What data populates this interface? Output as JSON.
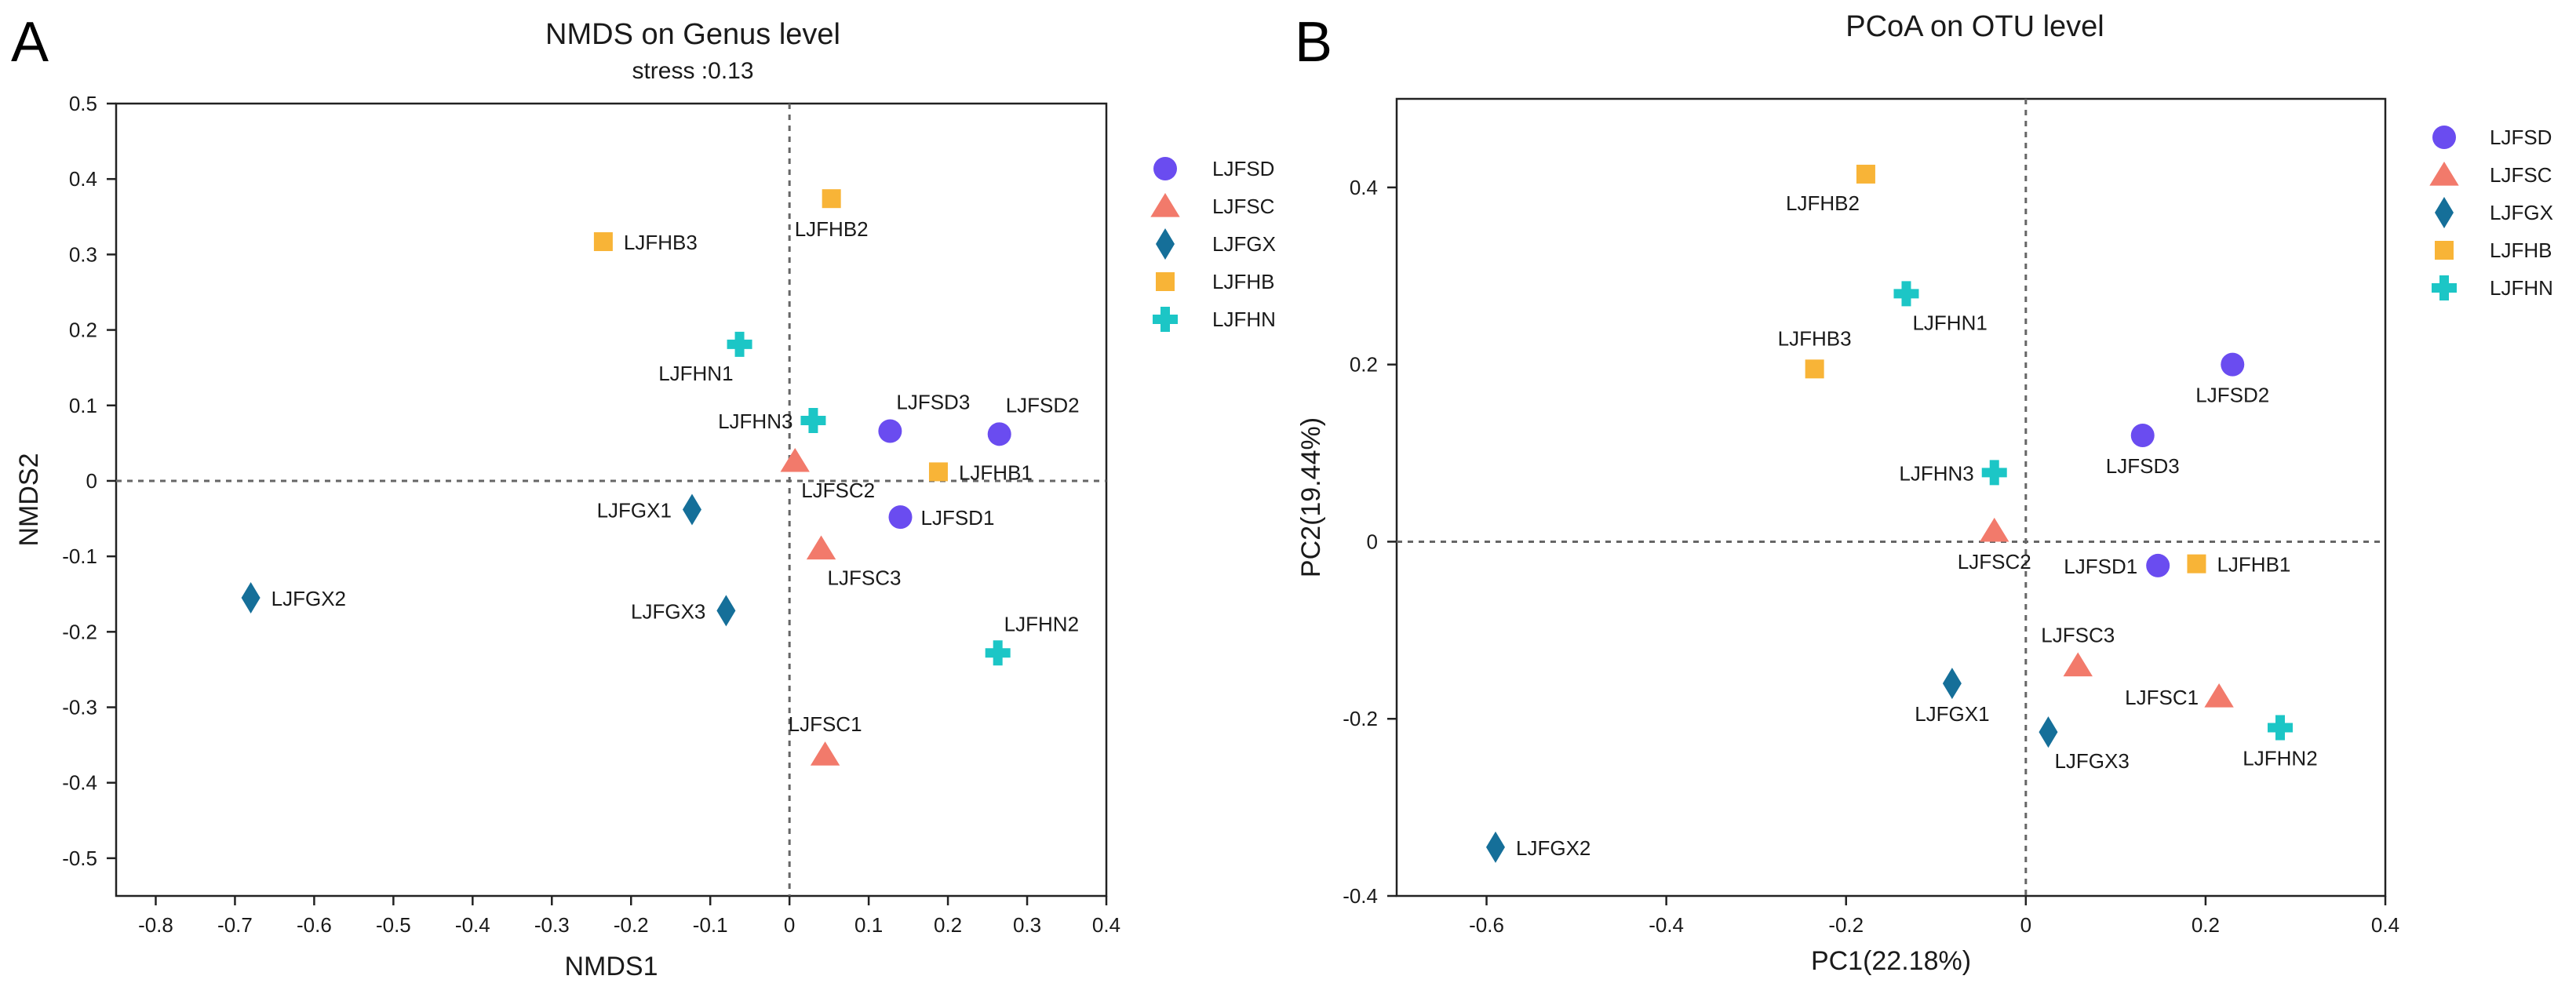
{
  "panels": [
    {
      "letter": "A",
      "title": "NMDS on Genus level",
      "subtitle": "stress :0.13"
    },
    {
      "letter": "B",
      "title": "PCoA on OTU level",
      "subtitle": ""
    }
  ],
  "groups": [
    {
      "name": "LJFSD",
      "marker": "circle",
      "color": "#6a4cf0"
    },
    {
      "name": "LJFSC",
      "marker": "triangle",
      "color": "#f27a6b"
    },
    {
      "name": "LJFGX",
      "marker": "diamond",
      "color": "#156f99"
    },
    {
      "name": "LJFHB",
      "marker": "square",
      "color": "#f8b437"
    },
    {
      "name": "LJFHN",
      "marker": "cross",
      "color": "#1cc6c6"
    }
  ],
  "chart_data": [
    {
      "type": "scatter",
      "title": "NMDS on Genus level",
      "subtitle": "stress :0.13",
      "xlabel": "NMDS1",
      "ylabel": "NMDS2",
      "xlim": [
        -0.85,
        0.4
      ],
      "ylim": [
        -0.55,
        0.5
      ],
      "xticks": [
        -0.8,
        -0.7,
        -0.6,
        -0.5,
        -0.4,
        -0.3,
        -0.2,
        -0.1,
        0,
        0.1,
        0.2,
        0.3,
        0.4
      ],
      "xtick_labels": [
        "-0.8",
        "-0.7",
        "-0.6",
        "-0.5",
        "-0.4",
        "-0.3",
        "-0.2",
        "-0.1",
        "0",
        "0.1",
        "0.2",
        "0.3",
        "0.4"
      ],
      "yticks": [
        -0.5,
        -0.4,
        -0.3,
        -0.2,
        -0.1,
        0,
        0.1,
        0.2,
        0.3,
        0.4,
        0.5
      ],
      "ytick_labels": [
        "-0.5",
        "-0.4",
        "-0.3",
        "-0.2",
        "-0.1",
        "0",
        "0.1",
        "0.2",
        "0.3",
        "0.4",
        "0.5"
      ],
      "reference_lines": {
        "x": 0,
        "y": 0
      },
      "legend_position": "right",
      "points": [
        {
          "label": "LJFSD1",
          "group": "LJFSD",
          "x": 0.14,
          "y": -0.048,
          "label_pos": "right"
        },
        {
          "label": "LJFSD2",
          "group": "LJFSD",
          "x": 0.265,
          "y": 0.062,
          "label_pos": "above-right"
        },
        {
          "label": "LJFSD3",
          "group": "LJFSD",
          "x": 0.127,
          "y": 0.066,
          "label_pos": "above-right"
        },
        {
          "label": "LJFSC1",
          "group": "LJFSC",
          "x": 0.045,
          "y": -0.363,
          "label_pos": "above"
        },
        {
          "label": "LJFSC2",
          "group": "LJFSC",
          "x": 0.007,
          "y": 0.026,
          "label_pos": "below-right"
        },
        {
          "label": "LJFSC3",
          "group": "LJFSC",
          "x": 0.04,
          "y": -0.09,
          "label_pos": "below-right"
        },
        {
          "label": "LJFGX1",
          "group": "LJFGX",
          "x": -0.123,
          "y": -0.038,
          "label_pos": "left"
        },
        {
          "label": "LJFGX2",
          "group": "LJFGX",
          "x": -0.68,
          "y": -0.155,
          "label_pos": "right"
        },
        {
          "label": "LJFGX3",
          "group": "LJFGX",
          "x": -0.08,
          "y": -0.172,
          "label_pos": "left"
        },
        {
          "label": "LJFHB1",
          "group": "LJFHB",
          "x": 0.188,
          "y": 0.012,
          "label_pos": "right"
        },
        {
          "label": "LJFHB2",
          "group": "LJFHB",
          "x": 0.053,
          "y": 0.374,
          "label_pos": "below"
        },
        {
          "label": "LJFHB3",
          "group": "LJFHB",
          "x": -0.235,
          "y": 0.317,
          "label_pos": "right"
        },
        {
          "label": "LJFHN1",
          "group": "LJFHN",
          "x": -0.063,
          "y": 0.181,
          "label_pos": "below-left"
        },
        {
          "label": "LJFHN2",
          "group": "LJFHN",
          "x": 0.263,
          "y": -0.228,
          "label_pos": "above-right"
        },
        {
          "label": "LJFHN3",
          "group": "LJFHN",
          "x": 0.03,
          "y": 0.08,
          "label_pos": "left"
        }
      ]
    },
    {
      "type": "scatter",
      "title": "PCoA on OTU level",
      "xlabel": "PC1(22.18%)",
      "ylabel": "PC2(19.44%)",
      "xlim": [
        -0.7,
        0.4
      ],
      "ylim": [
        -0.4,
        0.5
      ],
      "xticks": [
        -0.6,
        -0.4,
        -0.2,
        0,
        0.2,
        0.4
      ],
      "xtick_labels": [
        "-0.6",
        "-0.4",
        "-0.2",
        "0",
        "0.2",
        "0.4"
      ],
      "yticks": [
        -0.4,
        -0.2,
        0,
        0.2,
        0.4
      ],
      "ytick_labels": [
        "-0.4",
        "-0.2",
        "0",
        "0.2",
        "0.4"
      ],
      "reference_lines": {
        "x": 0,
        "y": 0
      },
      "legend_position": "right",
      "points": [
        {
          "label": "LJFSD1",
          "group": "LJFSD",
          "x": 0.147,
          "y": -0.027,
          "label_pos": "left"
        },
        {
          "label": "LJFSD2",
          "group": "LJFSD",
          "x": 0.23,
          "y": 0.2,
          "label_pos": "below"
        },
        {
          "label": "LJFSD3",
          "group": "LJFSD",
          "x": 0.13,
          "y": 0.12,
          "label_pos": "below"
        },
        {
          "label": "LJFSC1",
          "group": "LJFSC",
          "x": 0.215,
          "y": -0.175,
          "label_pos": "left"
        },
        {
          "label": "LJFSC2",
          "group": "LJFSC",
          "x": -0.035,
          "y": 0.012,
          "label_pos": "below"
        },
        {
          "label": "LJFSC3",
          "group": "LJFSC",
          "x": 0.058,
          "y": -0.14,
          "label_pos": "above"
        },
        {
          "label": "LJFGX1",
          "group": "LJFGX",
          "x": -0.082,
          "y": -0.16,
          "label_pos": "below"
        },
        {
          "label": "LJFGX2",
          "group": "LJFGX",
          "x": -0.59,
          "y": -0.345,
          "label_pos": "right"
        },
        {
          "label": "LJFGX3",
          "group": "LJFGX",
          "x": 0.025,
          "y": -0.215,
          "label_pos": "below-right"
        },
        {
          "label": "LJFHB1",
          "group": "LJFHB",
          "x": 0.19,
          "y": -0.025,
          "label_pos": "right"
        },
        {
          "label": "LJFHB2",
          "group": "LJFHB",
          "x": -0.178,
          "y": 0.415,
          "label_pos": "below-left"
        },
        {
          "label": "LJFHB3",
          "group": "LJFHB",
          "x": -0.235,
          "y": 0.195,
          "label_pos": "above"
        },
        {
          "label": "LJFHN1",
          "group": "LJFHN",
          "x": -0.133,
          "y": 0.28,
          "label_pos": "below-right"
        },
        {
          "label": "LJFHN2",
          "group": "LJFHN",
          "x": 0.283,
          "y": -0.21,
          "label_pos": "below"
        },
        {
          "label": "LJFHN3",
          "group": "LJFHN",
          "x": -0.035,
          "y": 0.078,
          "label_pos": "left"
        }
      ]
    }
  ]
}
